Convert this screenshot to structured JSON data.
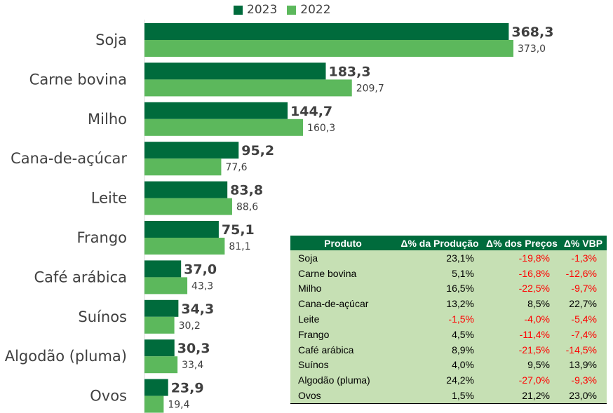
{
  "colors": {
    "s2023": "#006b3c",
    "s2022": "#5cb85c",
    "header": "#006b3c",
    "tableFill": "#c6e0b4",
    "negative": "#ff0000"
  },
  "chart_data": {
    "type": "bar",
    "orientation": "horizontal",
    "categories": [
      "Soja",
      "Carne bovina",
      "Milho",
      "Cana-de-açúcar",
      "Leite",
      "Frango",
      "Café arábica",
      "Suínos",
      "Algodão (pluma)",
      "Ovos"
    ],
    "series": [
      {
        "name": "2023",
        "values": [
          368.3,
          183.3,
          144.7,
          95.2,
          83.8,
          75.1,
          37.0,
          34.3,
          30.3,
          23.9
        ],
        "labels": [
          "368,3",
          "183,3",
          "144,7",
          "95,2",
          "83,8",
          "75,1",
          "37,0",
          "34,3",
          "30,3",
          "23,9"
        ]
      },
      {
        "name": "2022",
        "values": [
          373.0,
          209.7,
          160.3,
          77.6,
          88.6,
          81.1,
          43.3,
          30.2,
          33.4,
          19.4
        ],
        "labels": [
          "373,0",
          "209,7",
          "160,3",
          "77,6",
          "88,6",
          "81,1",
          "43,3",
          "30,2",
          "33,4",
          "19,4"
        ]
      }
    ],
    "xlim": [
      0,
      373.0
    ],
    "legend": "top",
    "grid": false
  },
  "table": {
    "headers": [
      "Produto",
      "Δ% da Produção",
      "Δ% dos Preços",
      "Δ% VBP"
    ],
    "rows": [
      [
        "Soja",
        "23,1%",
        "-19,8%",
        "-1,3%"
      ],
      [
        "Carne bovina",
        "5,1%",
        "-16,8%",
        "-12,6%"
      ],
      [
        "Milho",
        "16,5%",
        "-22,5%",
        "-9,7%"
      ],
      [
        "Cana-de-açúcar",
        "13,2%",
        "8,5%",
        "22,7%"
      ],
      [
        "Leite",
        "-1,5%",
        "-4,0%",
        "-5,4%"
      ],
      [
        "Frango",
        "4,5%",
        "-11,4%",
        "-7,4%"
      ],
      [
        "Café arábica",
        "8,9%",
        "-21,5%",
        "-14,5%"
      ],
      [
        "Suínos",
        "4,0%",
        "9,5%",
        "13,9%"
      ],
      [
        "Algodão (pluma)",
        "24,2%",
        "-27,0%",
        "-9,3%"
      ],
      [
        "Ovos",
        "1,5%",
        "21,2%",
        "23,0%"
      ]
    ]
  }
}
